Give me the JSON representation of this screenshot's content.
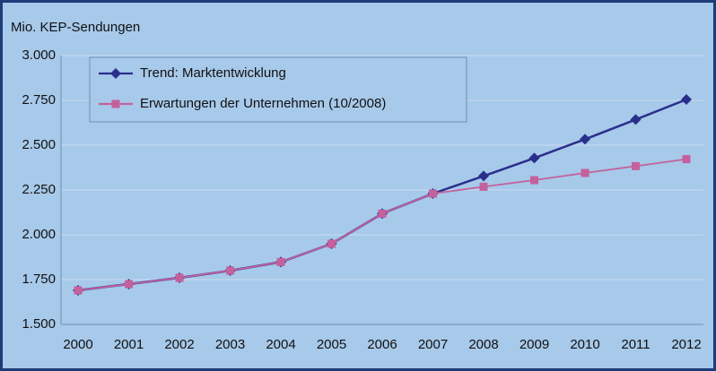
{
  "chart_data": {
    "type": "line",
    "title": "Mio. KEP-Sendungen",
    "categories": [
      "2000",
      "2001",
      "2002",
      "2003",
      "2004",
      "2005",
      "2006",
      "2007",
      "2008",
      "2009",
      "2010",
      "2011",
      "2012"
    ],
    "series": [
      {
        "name": "Trend: Marktentwicklung",
        "color": "#2a2f8c",
        "marker": "diamond",
        "values": [
          1690,
          1725,
          1760,
          1800,
          1848,
          1950,
          2118,
          2230,
          2328,
          2428,
          2533,
          2643,
          2755
        ]
      },
      {
        "name": "Erwartungen der Unternehmen (10/2008)",
        "color": "#c4619c",
        "marker": "square",
        "values": [
          1690,
          1725,
          1760,
          1800,
          1848,
          1950,
          2118,
          2230,
          2268,
          2305,
          2345,
          2383,
          2422
        ]
      }
    ],
    "ylim": [
      1500,
      3000
    ],
    "yticks": [
      {
        "value": 1500,
        "label": "1.500"
      },
      {
        "value": 1750,
        "label": "1.750"
      },
      {
        "value": 2000,
        "label": "2.000"
      },
      {
        "value": 2250,
        "label": "2.250"
      },
      {
        "value": 2500,
        "label": "2.500"
      },
      {
        "value": 2750,
        "label": "2.750"
      },
      {
        "value": 3000,
        "label": "3.000"
      }
    ],
    "grid": true,
    "legend": "upper left"
  }
}
